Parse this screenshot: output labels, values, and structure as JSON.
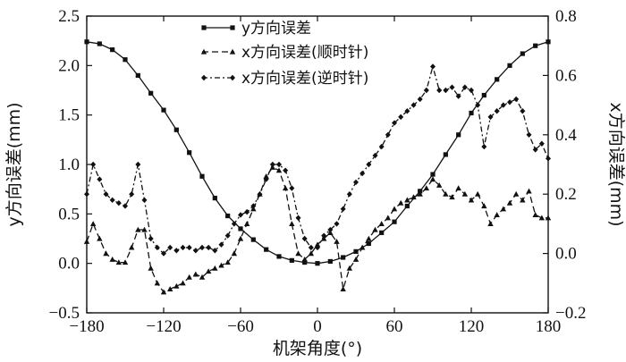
{
  "chart_data": {
    "type": "line",
    "xlabel": "机架角度(°)",
    "ylabel_left": "y方向误差(mm)",
    "ylabel_right": "x方向误差(mm)",
    "x_ticks": [
      "−180",
      "−120",
      "−60",
      "0",
      "60",
      "120",
      "180"
    ],
    "y_left_ticks": [
      "−0.5",
      "0.0",
      "0.5",
      "1.0",
      "1.5",
      "2.0",
      "2.5"
    ],
    "y_right_ticks": [
      "−0.2",
      "0.0",
      "0.2",
      "0.4",
      "0.6",
      "0.8"
    ],
    "xlim": [
      -180,
      180
    ],
    "ylim_left": [
      -0.5,
      2.5
    ],
    "ylim_right": [
      -0.2,
      0.8
    ],
    "grid": false,
    "legend_position": "top-center",
    "series": [
      {
        "name": "y方向误差",
        "axis": "left",
        "style": "solid-square",
        "color": "#111111",
        "x": [
          -180,
          -170,
          -160,
          -150,
          -140,
          -130,
          -120,
          -110,
          -100,
          -90,
          -80,
          -70,
          -60,
          -50,
          -40,
          -30,
          -20,
          -10,
          0,
          10,
          20,
          30,
          40,
          50,
          60,
          70,
          80,
          90,
          100,
          110,
          120,
          130,
          140,
          150,
          160,
          170,
          180
        ],
        "y": [
          2.24,
          2.22,
          2.16,
          2.06,
          1.9,
          1.72,
          1.55,
          1.35,
          1.12,
          0.88,
          0.66,
          0.48,
          0.35,
          0.24,
          0.14,
          0.07,
          0.03,
          0.01,
          0.0,
          0.02,
          0.06,
          0.12,
          0.2,
          0.31,
          0.42,
          0.58,
          0.73,
          0.9,
          1.1,
          1.3,
          1.52,
          1.7,
          1.86,
          2.0,
          2.12,
          2.2,
          2.24
        ]
      },
      {
        "name": "x方向误差(顺时针)",
        "axis": "right",
        "style": "dashed-triangle",
        "color": "#111111",
        "x": [
          -180,
          -175,
          -170,
          -165,
          -160,
          -155,
          -150,
          -145,
          -140,
          -135,
          -130,
          -125,
          -120,
          -115,
          -110,
          -105,
          -100,
          -95,
          -90,
          -85,
          -80,
          -75,
          -70,
          -65,
          -60,
          -55,
          -50,
          -45,
          -40,
          -35,
          -30,
          -25,
          -20,
          -15,
          -10,
          -5,
          0,
          5,
          10,
          15,
          20,
          25,
          30,
          35,
          40,
          45,
          50,
          55,
          60,
          65,
          70,
          75,
          80,
          85,
          90,
          95,
          100,
          105,
          110,
          115,
          120,
          125,
          130,
          135,
          140,
          145,
          150,
          155,
          160,
          165,
          170,
          175,
          180
        ],
        "y": [
          0.04,
          0.1,
          0.05,
          0.0,
          -0.02,
          -0.03,
          -0.03,
          0.02,
          0.08,
          0.08,
          -0.05,
          -0.1,
          -0.13,
          -0.12,
          -0.11,
          -0.1,
          -0.08,
          -0.07,
          -0.08,
          -0.06,
          -0.05,
          -0.04,
          -0.03,
          0.0,
          0.05,
          0.1,
          0.15,
          0.2,
          0.26,
          0.29,
          0.28,
          0.22,
          0.1,
          0.0,
          -0.02,
          0.0,
          0.03,
          0.05,
          0.07,
          0.04,
          -0.12,
          -0.05,
          -0.02,
          0.02,
          0.05,
          0.08,
          0.1,
          0.12,
          0.15,
          0.17,
          0.18,
          0.19,
          0.2,
          0.22,
          0.25,
          0.23,
          0.2,
          0.19,
          0.22,
          0.2,
          0.18,
          0.2,
          0.16,
          0.1,
          0.13,
          0.15,
          0.17,
          0.2,
          0.18,
          0.21,
          0.13,
          0.12,
          0.12
        ]
      },
      {
        "name": "x方向误差(逆时针)",
        "axis": "right",
        "style": "dashdot-diamond",
        "color": "#111111",
        "x": [
          -180,
          -175,
          -170,
          -165,
          -160,
          -155,
          -150,
          -145,
          -140,
          -135,
          -130,
          -125,
          -120,
          -115,
          -110,
          -105,
          -100,
          -95,
          -90,
          -85,
          -80,
          -75,
          -70,
          -65,
          -60,
          -55,
          -50,
          -45,
          -40,
          -35,
          -30,
          -25,
          -20,
          -15,
          -10,
          -5,
          0,
          5,
          10,
          15,
          20,
          25,
          30,
          35,
          40,
          45,
          50,
          55,
          60,
          65,
          70,
          75,
          80,
          85,
          90,
          95,
          100,
          105,
          110,
          115,
          120,
          125,
          130,
          135,
          140,
          145,
          150,
          155,
          160,
          165,
          170,
          175,
          180
        ],
        "y": [
          0.2,
          0.3,
          0.25,
          0.2,
          0.18,
          0.17,
          0.16,
          0.2,
          0.3,
          0.18,
          0.05,
          0.02,
          0.0,
          0.02,
          0.01,
          0.02,
          0.02,
          0.01,
          0.02,
          0.02,
          0.01,
          0.03,
          0.06,
          0.1,
          0.13,
          0.14,
          0.16,
          0.2,
          0.25,
          0.3,
          0.3,
          0.28,
          0.22,
          0.12,
          0.05,
          0.02,
          0.02,
          0.06,
          0.08,
          0.1,
          0.15,
          0.2,
          0.24,
          0.27,
          0.3,
          0.33,
          0.36,
          0.4,
          0.44,
          0.46,
          0.48,
          0.5,
          0.52,
          0.55,
          0.63,
          0.55,
          0.55,
          0.56,
          0.53,
          0.56,
          0.55,
          0.5,
          0.36,
          0.46,
          0.48,
          0.5,
          0.51,
          0.52,
          0.48,
          0.4,
          0.35,
          0.37,
          0.32
        ]
      }
    ]
  }
}
